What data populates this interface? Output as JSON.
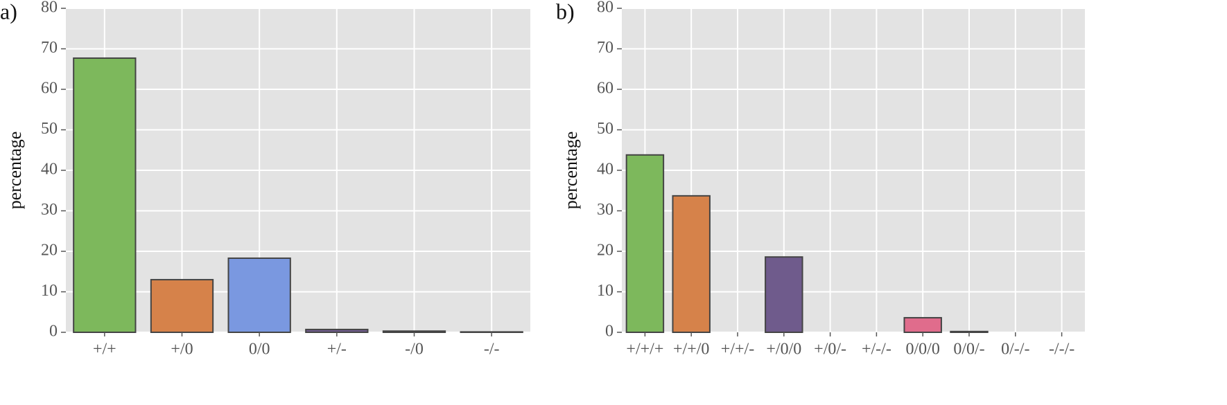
{
  "chart_data": [
    {
      "type": "bar",
      "label": "a)",
      "ylabel": "percentage",
      "categories": [
        "+/+",
        "+/0",
        "0/0",
        "+/-",
        "-/0",
        "-/-"
      ],
      "values": [
        67.7,
        13.0,
        18.3,
        0.7,
        0.3,
        0.1
      ],
      "colors": [
        "#7db85c",
        "#d6824a",
        "#7a98e0",
        "#6f5b8c",
        "#8b7bb0",
        "#9a9a9a"
      ],
      "ylim": [
        0,
        80
      ],
      "yticks": [
        0,
        10,
        20,
        30,
        40,
        50,
        60,
        70,
        80
      ],
      "grid": true
    },
    {
      "type": "bar",
      "label": "b)",
      "ylabel": "percentage",
      "categories": [
        "+/+/+",
        "+/+/0",
        "+/+/-",
        "+/0/0",
        "+/0/-",
        "+/-/-",
        "0/0/0",
        "0/0/-",
        "0/-/-",
        "-/-/-"
      ],
      "values": [
        43.8,
        33.7,
        0,
        18.6,
        0,
        0,
        3.6,
        0.2,
        0,
        0
      ],
      "colors": [
        "#7db85c",
        "#d6824a",
        "#7a98e0",
        "#6f5b8c",
        "#c9b24a",
        "#5aa7a0",
        "#e06c8c",
        "#8b7bb0",
        "#9a9a9a",
        "#b07b5a"
      ],
      "ylim": [
        0,
        80
      ],
      "yticks": [
        0,
        10,
        20,
        30,
        40,
        50,
        60,
        70,
        80
      ],
      "grid": true
    }
  ]
}
